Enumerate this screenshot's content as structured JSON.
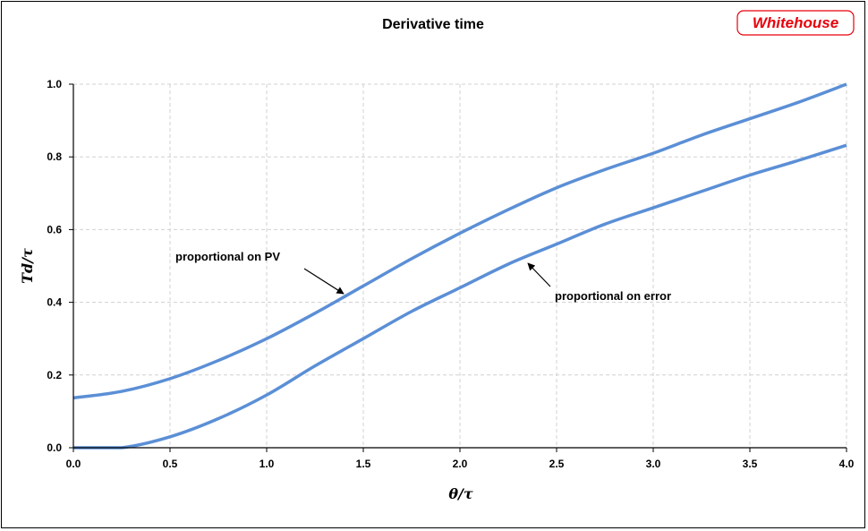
{
  "logo": {
    "text": "Whitehouse",
    "color": "#e8000b"
  },
  "chart_data": {
    "type": "line",
    "title": "Derivative time",
    "xlabel": "θ/τ",
    "ylabel": "Td/τ",
    "xlim": [
      0,
      4
    ],
    "ylim": [
      0,
      1
    ],
    "xticks": [
      "0.0",
      "0.5",
      "1.0",
      "1.5",
      "2.0",
      "2.5",
      "3.0",
      "3.5",
      "4.0"
    ],
    "yticks": [
      "0.0",
      "0.2",
      "0.4",
      "0.6",
      "0.8",
      "1.0"
    ],
    "grid": true,
    "line_color": "#5b8fd6",
    "series": [
      {
        "name": "proportional on PV",
        "x": [
          0,
          0.25,
          0.5,
          0.75,
          1.0,
          1.25,
          1.5,
          1.75,
          2.0,
          2.25,
          2.5,
          2.75,
          3.0,
          3.25,
          3.5,
          3.75,
          4.0
        ],
        "y": [
          0.137,
          0.155,
          0.19,
          0.24,
          0.3,
          0.37,
          0.445,
          0.52,
          0.59,
          0.655,
          0.715,
          0.765,
          0.81,
          0.86,
          0.905,
          0.95,
          1.0
        ]
      },
      {
        "name": "proportional on error",
        "x": [
          0,
          0.25,
          0.5,
          0.75,
          1.0,
          1.25,
          1.5,
          1.75,
          2.0,
          2.25,
          2.5,
          2.75,
          3.0,
          3.25,
          3.5,
          3.75,
          4.0
        ],
        "y": [
          0.0,
          0.0,
          0.03,
          0.08,
          0.145,
          0.225,
          0.3,
          0.375,
          0.44,
          0.505,
          0.56,
          0.615,
          0.66,
          0.705,
          0.75,
          0.79,
          0.832
        ]
      }
    ],
    "annotations": [
      {
        "text": "proportional on PV",
        "points_to": [
          1.4,
          0.42
        ]
      },
      {
        "text": "proportional on error",
        "points_to": [
          2.35,
          0.5
        ]
      }
    ]
  }
}
